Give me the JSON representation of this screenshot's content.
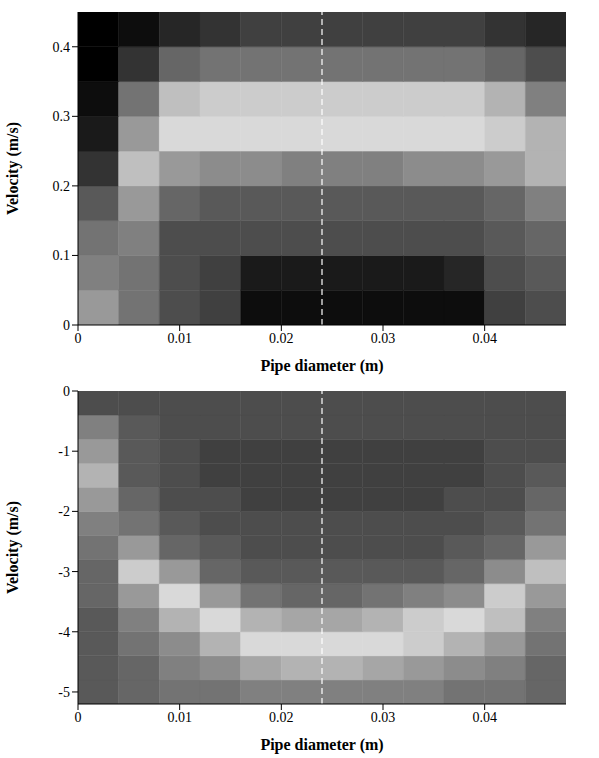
{
  "chart_data": [
    {
      "type": "heatmap",
      "x_label": "Pipe diameter (m)",
      "y_label": "Velocity (m/s)",
      "xlim": [
        0,
        0.048
      ],
      "ylim": [
        0,
        0.45
      ],
      "xticks": [
        0,
        0.01,
        0.02,
        0.03,
        0.04
      ],
      "yticks": [
        0,
        0.1,
        0.2,
        0.3,
        0.4
      ],
      "vline": 0.024,
      "x_bins": [
        0,
        0.004,
        0.008,
        0.012,
        0.016,
        0.02,
        0.024,
        0.028,
        0.032,
        0.036,
        0.04,
        0.044,
        0.048
      ],
      "y_bins": [
        0,
        0.05,
        0.1,
        0.15,
        0.2,
        0.25,
        0.3,
        0.35,
        0.4,
        0.45
      ],
      "cells": [
        [
          0.6,
          0.45,
          0.3,
          0.25,
          0.05,
          0.05,
          0.05,
          0.05,
          0.05,
          0.05,
          0.25,
          0.3
        ],
        [
          0.5,
          0.45,
          0.3,
          0.25,
          0.1,
          0.1,
          0.1,
          0.1,
          0.1,
          0.15,
          0.3,
          0.35
        ],
        [
          0.45,
          0.5,
          0.3,
          0.3,
          0.3,
          0.3,
          0.3,
          0.3,
          0.3,
          0.3,
          0.35,
          0.4
        ],
        [
          0.35,
          0.6,
          0.4,
          0.35,
          0.35,
          0.35,
          0.35,
          0.35,
          0.35,
          0.35,
          0.4,
          0.5
        ],
        [
          0.2,
          0.75,
          0.6,
          0.55,
          0.55,
          0.5,
          0.5,
          0.5,
          0.55,
          0.55,
          0.6,
          0.7
        ],
        [
          0.1,
          0.6,
          0.85,
          0.85,
          0.85,
          0.85,
          0.85,
          0.85,
          0.85,
          0.85,
          0.8,
          0.7
        ],
        [
          0.05,
          0.45,
          0.75,
          0.8,
          0.8,
          0.8,
          0.8,
          0.8,
          0.8,
          0.8,
          0.7,
          0.5
        ],
        [
          0.0,
          0.2,
          0.4,
          0.45,
          0.45,
          0.45,
          0.45,
          0.45,
          0.45,
          0.45,
          0.4,
          0.3
        ],
        [
          0.0,
          0.05,
          0.15,
          0.2,
          0.25,
          0.25,
          0.25,
          0.25,
          0.25,
          0.25,
          0.2,
          0.15
        ]
      ]
    },
    {
      "type": "heatmap",
      "x_label": "Pipe diameter (m)",
      "y_label": "Velocity (m/s)",
      "xlim": [
        0,
        0.048
      ],
      "ylim": [
        -5.2,
        0
      ],
      "xticks": [
        0,
        0.01,
        0.02,
        0.03,
        0.04
      ],
      "yticks": [
        -5,
        -4,
        -3,
        -2,
        -1,
        0
      ],
      "vline": 0.024,
      "x_bins": [
        0,
        0.004,
        0.008,
        0.012,
        0.016,
        0.02,
        0.024,
        0.028,
        0.032,
        0.036,
        0.04,
        0.044,
        0.048
      ],
      "y_bins": [
        -5.2,
        -4.8,
        -4.4,
        -4.0,
        -3.6,
        -3.2,
        -2.8,
        -2.4,
        -2.0,
        -1.6,
        -1.2,
        -0.8,
        -0.4,
        0
      ],
      "cells": [
        [
          0.35,
          0.4,
          0.45,
          0.45,
          0.5,
          0.5,
          0.5,
          0.5,
          0.5,
          0.45,
          0.45,
          0.4
        ],
        [
          0.35,
          0.4,
          0.5,
          0.55,
          0.65,
          0.7,
          0.7,
          0.65,
          0.6,
          0.55,
          0.5,
          0.4
        ],
        [
          0.35,
          0.45,
          0.55,
          0.7,
          0.85,
          0.85,
          0.85,
          0.85,
          0.8,
          0.7,
          0.6,
          0.45
        ],
        [
          0.35,
          0.5,
          0.7,
          0.85,
          0.7,
          0.65,
          0.65,
          0.7,
          0.8,
          0.85,
          0.75,
          0.5
        ],
        [
          0.4,
          0.6,
          0.85,
          0.6,
          0.45,
          0.4,
          0.4,
          0.45,
          0.5,
          0.55,
          0.8,
          0.6
        ],
        [
          0.4,
          0.8,
          0.6,
          0.4,
          0.35,
          0.35,
          0.35,
          0.35,
          0.35,
          0.4,
          0.55,
          0.75
        ],
        [
          0.45,
          0.6,
          0.4,
          0.35,
          0.3,
          0.3,
          0.3,
          0.3,
          0.3,
          0.35,
          0.4,
          0.6
        ],
        [
          0.5,
          0.45,
          0.35,
          0.3,
          0.3,
          0.3,
          0.3,
          0.3,
          0.3,
          0.3,
          0.35,
          0.45
        ],
        [
          0.6,
          0.4,
          0.3,
          0.3,
          0.25,
          0.25,
          0.25,
          0.25,
          0.25,
          0.3,
          0.3,
          0.4
        ],
        [
          0.7,
          0.35,
          0.3,
          0.25,
          0.25,
          0.25,
          0.25,
          0.25,
          0.25,
          0.25,
          0.3,
          0.35
        ],
        [
          0.6,
          0.35,
          0.3,
          0.25,
          0.25,
          0.25,
          0.25,
          0.25,
          0.25,
          0.25,
          0.3,
          0.3
        ],
        [
          0.5,
          0.35,
          0.3,
          0.3,
          0.3,
          0.3,
          0.3,
          0.3,
          0.3,
          0.3,
          0.3,
          0.3
        ],
        [
          0.3,
          0.3,
          0.3,
          0.3,
          0.3,
          0.3,
          0.3,
          0.3,
          0.3,
          0.3,
          0.3,
          0.3
        ]
      ]
    }
  ]
}
